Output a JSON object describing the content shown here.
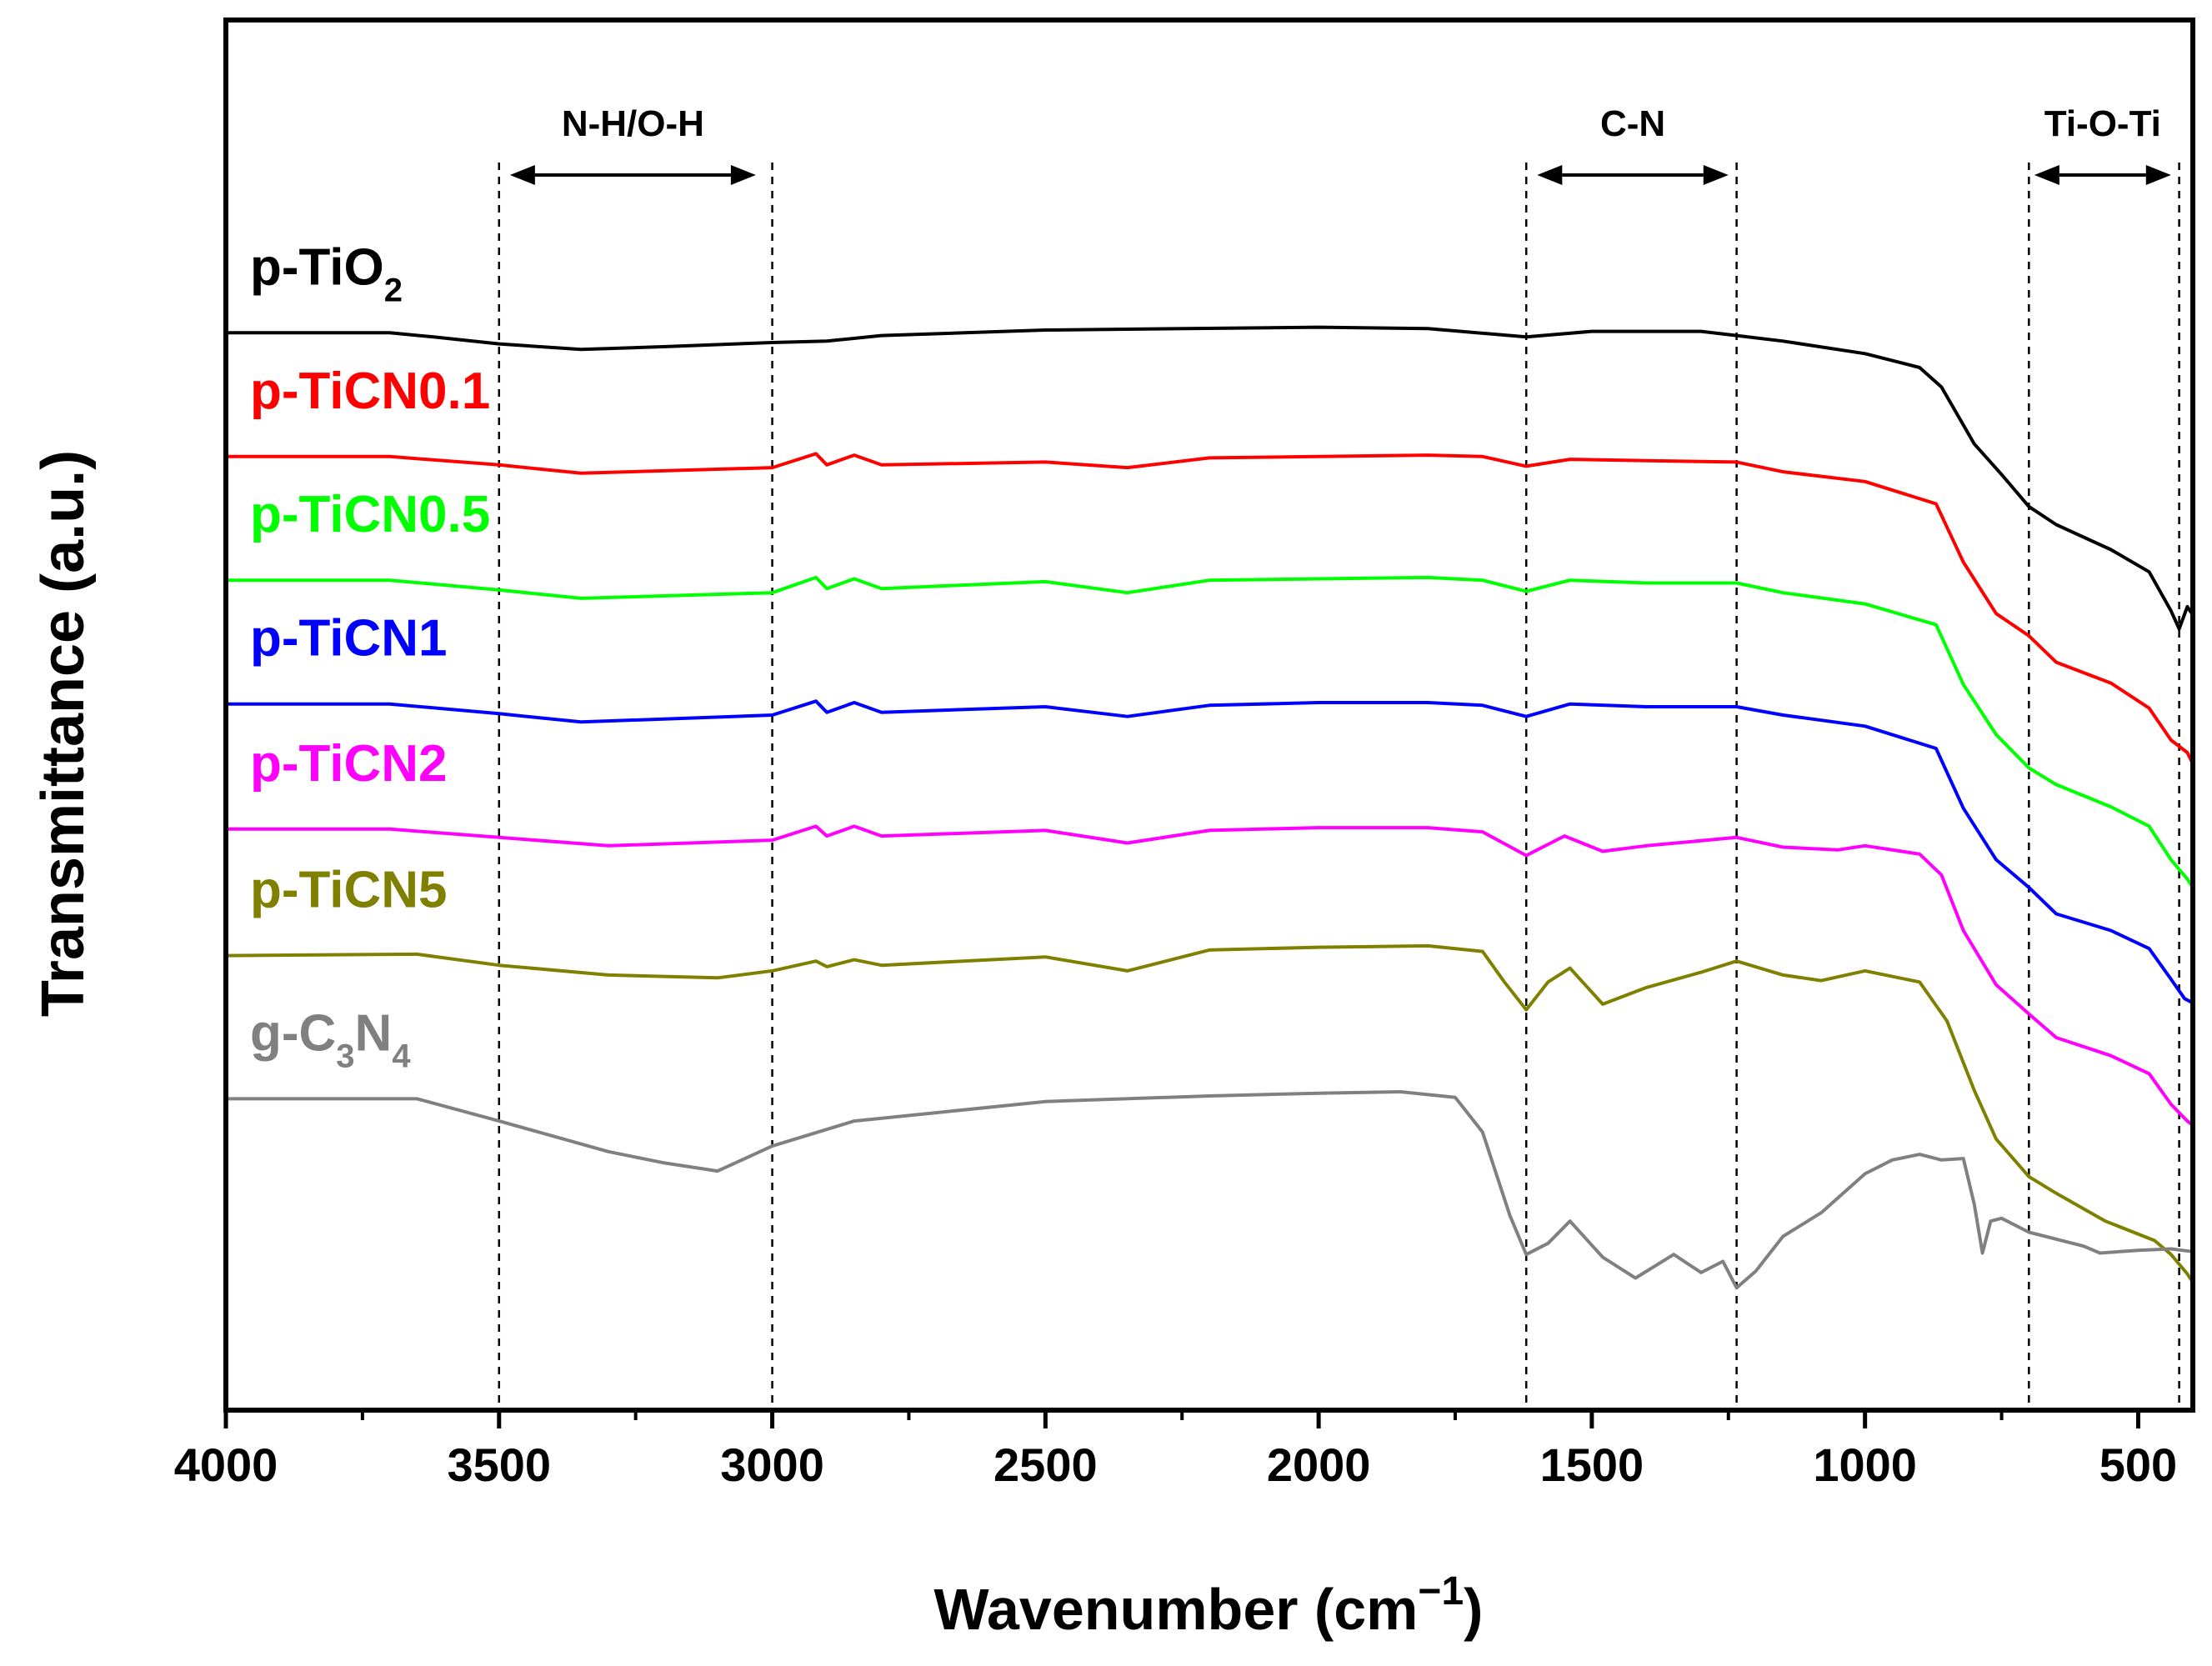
{
  "chart_data": {
    "type": "line",
    "title": "",
    "xlabel": "Wavenumber (cm",
    "xlabel_sup": "−1",
    "xlabel_close": ")",
    "ylabel": "Transmittance (a.u.)",
    "xlim": [
      4000,
      400
    ],
    "x_reversed": true,
    "ylim": [
      0,
      100
    ],
    "y_ticks_shown": false,
    "x_ticks": [
      4000,
      3500,
      3000,
      2500,
      2000,
      1500,
      1000,
      500
    ],
    "x_tick_labels": [
      "4000",
      "3500",
      "3000",
      "2500",
      "2000",
      "1500",
      "1000",
      "500"
    ],
    "minor_x_ticks": [
      3750,
      3250,
      2750,
      2250,
      1750,
      1250,
      750
    ],
    "reference_lines": [
      3500,
      3000,
      1620,
      1235,
      700,
      425
    ],
    "regions": [
      {
        "label": "N-H/O-H",
        "from": 3480,
        "to": 3030
      },
      {
        "label": "C-N",
        "from": 1600,
        "to": 1250
      },
      {
        "label": "Ti-O-Ti",
        "from": 690,
        "to": 440
      }
    ],
    "series": [
      {
        "name": "p-TiO2",
        "label_main": "p-TiO",
        "label_sub": "2",
        "label_tail": "",
        "color": "#000000",
        "points": [
          [
            4000,
            77.5
          ],
          [
            3700,
            77.5
          ],
          [
            3620,
            77.2
          ],
          [
            3500,
            76.7
          ],
          [
            3350,
            76.3
          ],
          [
            3200,
            76.5
          ],
          [
            3000,
            76.8
          ],
          [
            2900,
            76.9
          ],
          [
            2800,
            77.3
          ],
          [
            2500,
            77.7
          ],
          [
            2000,
            77.9
          ],
          [
            1800,
            77.8
          ],
          [
            1620,
            77.2
          ],
          [
            1500,
            77.6
          ],
          [
            1300,
            77.6
          ],
          [
            1235,
            77.3
          ],
          [
            1150,
            76.9
          ],
          [
            1000,
            76.0
          ],
          [
            900,
            75.0
          ],
          [
            860,
            73.6
          ],
          [
            800,
            69.5
          ],
          [
            750,
            67.3
          ],
          [
            700,
            65.0
          ],
          [
            650,
            63.7
          ],
          [
            550,
            61.9
          ],
          [
            480,
            60.3
          ],
          [
            440,
            57.5
          ],
          [
            425,
            56.2
          ],
          [
            410,
            57.8
          ],
          [
            400,
            57.2
          ]
        ]
      },
      {
        "name": "p-TiCN0.1",
        "label_main": "p-TiCN0.1",
        "label_sub": "",
        "label_tail": "",
        "color": "#ff0000",
        "points": [
          [
            4000,
            68.6
          ],
          [
            3700,
            68.6
          ],
          [
            3500,
            68.0
          ],
          [
            3350,
            67.4
          ],
          [
            3000,
            67.8
          ],
          [
            2920,
            68.8
          ],
          [
            2900,
            68.0
          ],
          [
            2850,
            68.7
          ],
          [
            2800,
            68.0
          ],
          [
            2500,
            68.2
          ],
          [
            2350,
            67.8
          ],
          [
            2200,
            68.5
          ],
          [
            2000,
            68.6
          ],
          [
            1800,
            68.7
          ],
          [
            1700,
            68.6
          ],
          [
            1620,
            67.9
          ],
          [
            1540,
            68.4
          ],
          [
            1400,
            68.3
          ],
          [
            1235,
            68.2
          ],
          [
            1150,
            67.5
          ],
          [
            1000,
            66.8
          ],
          [
            870,
            65.2
          ],
          [
            820,
            61.0
          ],
          [
            760,
            57.3
          ],
          [
            700,
            55.7
          ],
          [
            650,
            53.8
          ],
          [
            550,
            52.3
          ],
          [
            480,
            50.5
          ],
          [
            440,
            48.2
          ],
          [
            410,
            47.3
          ],
          [
            400,
            46.5
          ]
        ]
      },
      {
        "name": "p-TiCN0.5",
        "label_main": "p-TiCN0.5",
        "label_sub": "",
        "label_tail": "",
        "color": "#00ff00",
        "points": [
          [
            4000,
            59.7
          ],
          [
            3700,
            59.7
          ],
          [
            3500,
            59.0
          ],
          [
            3350,
            58.4
          ],
          [
            3000,
            58.8
          ],
          [
            2920,
            59.9
          ],
          [
            2900,
            59.1
          ],
          [
            2850,
            59.8
          ],
          [
            2800,
            59.1
          ],
          [
            2500,
            59.6
          ],
          [
            2350,
            58.8
          ],
          [
            2200,
            59.7
          ],
          [
            2000,
            59.8
          ],
          [
            1800,
            59.9
          ],
          [
            1700,
            59.7
          ],
          [
            1620,
            58.9
          ],
          [
            1540,
            59.7
          ],
          [
            1400,
            59.5
          ],
          [
            1235,
            59.5
          ],
          [
            1150,
            58.8
          ],
          [
            1000,
            58.0
          ],
          [
            870,
            56.5
          ],
          [
            820,
            52.2
          ],
          [
            760,
            48.6
          ],
          [
            700,
            46.2
          ],
          [
            650,
            45.0
          ],
          [
            550,
            43.4
          ],
          [
            480,
            42.0
          ],
          [
            440,
            39.6
          ],
          [
            410,
            38.2
          ],
          [
            400,
            37.6
          ]
        ]
      },
      {
        "name": "p-TiCN1",
        "label_main": "p-TiCN1",
        "label_sub": "",
        "label_tail": "",
        "color": "#0000ff",
        "points": [
          [
            4000,
            50.8
          ],
          [
            3700,
            50.8
          ],
          [
            3500,
            50.1
          ],
          [
            3350,
            49.5
          ],
          [
            3000,
            50.0
          ],
          [
            2920,
            51.0
          ],
          [
            2900,
            50.2
          ],
          [
            2850,
            50.9
          ],
          [
            2800,
            50.2
          ],
          [
            2500,
            50.6
          ],
          [
            2350,
            49.9
          ],
          [
            2200,
            50.7
          ],
          [
            2000,
            50.9
          ],
          [
            1800,
            50.9
          ],
          [
            1700,
            50.7
          ],
          [
            1620,
            49.9
          ],
          [
            1540,
            50.8
          ],
          [
            1400,
            50.6
          ],
          [
            1235,
            50.6
          ],
          [
            1150,
            50.0
          ],
          [
            1000,
            49.2
          ],
          [
            870,
            47.6
          ],
          [
            820,
            43.3
          ],
          [
            760,
            39.6
          ],
          [
            700,
            37.6
          ],
          [
            650,
            35.7
          ],
          [
            550,
            34.5
          ],
          [
            480,
            33.2
          ],
          [
            440,
            31.0
          ],
          [
            415,
            29.6
          ],
          [
            400,
            29.3
          ]
        ]
      },
      {
        "name": "p-TiCN2",
        "label_main": "p-TiCN2",
        "label_sub": "",
        "label_tail": "",
        "color": "#ff00ff",
        "points": [
          [
            4000,
            41.8
          ],
          [
            3700,
            41.8
          ],
          [
            3500,
            41.2
          ],
          [
            3300,
            40.6
          ],
          [
            3000,
            41.0
          ],
          [
            2920,
            42.0
          ],
          [
            2900,
            41.3
          ],
          [
            2850,
            42.0
          ],
          [
            2800,
            41.3
          ],
          [
            2500,
            41.7
          ],
          [
            2350,
            40.8
          ],
          [
            2200,
            41.7
          ],
          [
            2000,
            41.9
          ],
          [
            1800,
            41.9
          ],
          [
            1700,
            41.6
          ],
          [
            1620,
            39.9
          ],
          [
            1550,
            41.3
          ],
          [
            1480,
            40.2
          ],
          [
            1400,
            40.6
          ],
          [
            1235,
            41.2
          ],
          [
            1150,
            40.5
          ],
          [
            1050,
            40.3
          ],
          [
            1000,
            40.6
          ],
          [
            900,
            40.0
          ],
          [
            860,
            38.5
          ],
          [
            820,
            34.5
          ],
          [
            760,
            30.6
          ],
          [
            700,
            28.5
          ],
          [
            650,
            26.8
          ],
          [
            550,
            25.5
          ],
          [
            480,
            24.2
          ],
          [
            440,
            22.0
          ],
          [
            410,
            20.8
          ],
          [
            400,
            20.5
          ]
        ]
      },
      {
        "name": "p-TiCN5",
        "label_main": "p-TiCN5",
        "label_sub": "",
        "label_tail": "",
        "color": "#808000",
        "points": [
          [
            4000,
            32.7
          ],
          [
            3650,
            32.8
          ],
          [
            3500,
            32.0
          ],
          [
            3300,
            31.3
          ],
          [
            3100,
            31.1
          ],
          [
            3000,
            31.6
          ],
          [
            2920,
            32.3
          ],
          [
            2900,
            31.9
          ],
          [
            2850,
            32.4
          ],
          [
            2800,
            32.0
          ],
          [
            2500,
            32.6
          ],
          [
            2350,
            31.6
          ],
          [
            2200,
            33.1
          ],
          [
            2000,
            33.3
          ],
          [
            1800,
            33.4
          ],
          [
            1700,
            33.0
          ],
          [
            1660,
            30.8
          ],
          [
            1620,
            28.8
          ],
          [
            1580,
            30.8
          ],
          [
            1540,
            31.8
          ],
          [
            1480,
            29.2
          ],
          [
            1400,
            30.4
          ],
          [
            1300,
            31.5
          ],
          [
            1235,
            32.3
          ],
          [
            1150,
            31.3
          ],
          [
            1080,
            30.9
          ],
          [
            1000,
            31.6
          ],
          [
            900,
            30.8
          ],
          [
            850,
            28.0
          ],
          [
            800,
            23.0
          ],
          [
            760,
            19.5
          ],
          [
            700,
            16.8
          ],
          [
            650,
            15.6
          ],
          [
            560,
            13.6
          ],
          [
            470,
            12.2
          ],
          [
            440,
            11.2
          ],
          [
            410,
            9.8
          ],
          [
            400,
            9.2
          ]
        ]
      },
      {
        "name": "g-C3N4",
        "label_main": "g-C",
        "label_sub": "3",
        "label_tail": "N",
        "label_sub2": "4",
        "color": "#808080",
        "points": [
          [
            4000,
            22.4
          ],
          [
            3650,
            22.4
          ],
          [
            3500,
            20.8
          ],
          [
            3300,
            18.6
          ],
          [
            3200,
            17.8
          ],
          [
            3100,
            17.2
          ],
          [
            3000,
            19.0
          ],
          [
            2850,
            20.8
          ],
          [
            2500,
            22.2
          ],
          [
            2200,
            22.6
          ],
          [
            2000,
            22.8
          ],
          [
            1850,
            22.9
          ],
          [
            1750,
            22.5
          ],
          [
            1700,
            20.0
          ],
          [
            1650,
            14.0
          ],
          [
            1620,
            11.2
          ],
          [
            1580,
            12.0
          ],
          [
            1540,
            13.6
          ],
          [
            1480,
            11.0
          ],
          [
            1420,
            9.5
          ],
          [
            1350,
            11.2
          ],
          [
            1300,
            9.9
          ],
          [
            1260,
            10.7
          ],
          [
            1235,
            8.8
          ],
          [
            1200,
            10.0
          ],
          [
            1150,
            12.5
          ],
          [
            1080,
            14.2
          ],
          [
            1000,
            17.0
          ],
          [
            950,
            18.0
          ],
          [
            900,
            18.4
          ],
          [
            860,
            18.0
          ],
          [
            820,
            18.1
          ],
          [
            800,
            14.8
          ],
          [
            785,
            11.3
          ],
          [
            770,
            13.6
          ],
          [
            750,
            13.8
          ],
          [
            700,
            12.8
          ],
          [
            600,
            11.8
          ],
          [
            570,
            11.3
          ],
          [
            500,
            11.5
          ],
          [
            440,
            11.6
          ],
          [
            420,
            11.5
          ],
          [
            400,
            11.4
          ]
        ]
      }
    ]
  }
}
